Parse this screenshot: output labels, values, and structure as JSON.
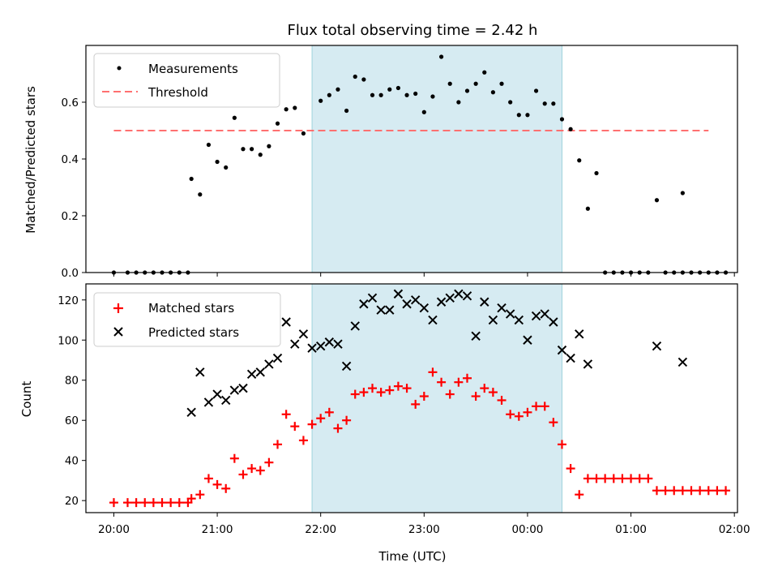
{
  "title": "Flux total observing time = 2.42 h",
  "colors": {
    "measurement": "#000000",
    "threshold": "#ff6e6e",
    "matched": "#ff0000",
    "predicted": "#000000",
    "shade": "#add8e6"
  },
  "chart_data": [
    {
      "type": "scatter",
      "title": "Flux total observing time = 2.42 h",
      "xlabel": "",
      "ylabel": "Matched/Predicted stars",
      "xlim_hours": [
        19.73,
        26.03
      ],
      "ylim": [
        0,
        0.8
      ],
      "yticks": [
        0.0,
        0.2,
        0.4,
        0.6
      ],
      "ytick_labels": [
        "0.0",
        "0.2",
        "0.4",
        "0.6"
      ],
      "legend_position": "upper-left",
      "shaded_interval": [
        "21:55",
        "24:20"
      ],
      "series": [
        {
          "name": "Measurements",
          "marker": "dot",
          "points": [
            [
              "20:00",
              0
            ],
            [
              "20:08",
              0
            ],
            [
              "20:13",
              0
            ],
            [
              "20:18",
              0
            ],
            [
              "20:23",
              0
            ],
            [
              "20:28",
              0
            ],
            [
              "20:33",
              0
            ],
            [
              "20:38",
              0
            ],
            [
              "20:43",
              0
            ],
            [
              "20:45",
              0.33
            ],
            [
              "20:50",
              0.275
            ],
            [
              "20:55",
              0.45
            ],
            [
              "21:00",
              0.39
            ],
            [
              "21:05",
              0.37
            ],
            [
              "21:10",
              0.545
            ],
            [
              "21:15",
              0.435
            ],
            [
              "21:20",
              0.435
            ],
            [
              "21:25",
              0.415
            ],
            [
              "21:30",
              0.445
            ],
            [
              "21:35",
              0.525
            ],
            [
              "21:40",
              0.575
            ],
            [
              "21:45",
              0.58
            ],
            [
              "21:50",
              0.49
            ],
            [
              "22:00",
              0.605
            ],
            [
              "22:05",
              0.625
            ],
            [
              "22:10",
              0.645
            ],
            [
              "22:15",
              0.57
            ],
            [
              "22:20",
              0.69
            ],
            [
              "22:25",
              0.68
            ],
            [
              "22:30",
              0.625
            ],
            [
              "22:35",
              0.625
            ],
            [
              "22:40",
              0.645
            ],
            [
              "22:45",
              0.65
            ],
            [
              "22:50",
              0.625
            ],
            [
              "22:55",
              0.63
            ],
            [
              "23:00",
              0.565
            ],
            [
              "23:05",
              0.62
            ],
            [
              "23:10",
              0.76
            ],
            [
              "23:15",
              0.665
            ],
            [
              "23:20",
              0.6
            ],
            [
              "23:25",
              0.64
            ],
            [
              "23:30",
              0.665
            ],
            [
              "23:35",
              0.705
            ],
            [
              "23:40",
              0.635
            ],
            [
              "23:45",
              0.665
            ],
            [
              "23:50",
              0.6
            ],
            [
              "23:55",
              0.555
            ],
            [
              "24:00",
              0.555
            ],
            [
              "24:05",
              0.64
            ],
            [
              "24:10",
              0.595
            ],
            [
              "24:15",
              0.595
            ],
            [
              "24:20",
              0.54
            ],
            [
              "24:25",
              0.505
            ],
            [
              "24:30",
              0.395
            ],
            [
              "24:35",
              0.225
            ],
            [
              "24:40",
              0.35
            ],
            [
              "24:45",
              0
            ],
            [
              "24:50",
              0
            ],
            [
              "24:55",
              0
            ],
            [
              "25:00",
              0
            ],
            [
              "25:05",
              0
            ],
            [
              "25:10",
              0
            ],
            [
              "25:20",
              0
            ],
            [
              "25:25",
              0
            ],
            [
              "25:30",
              0
            ],
            [
              "25:35",
              0
            ],
            [
              "25:40",
              0
            ],
            [
              "25:45",
              0
            ],
            [
              "25:50",
              0
            ],
            [
              "25:55",
              0
            ],
            [
              "25:15",
              0.255
            ],
            [
              "25:30",
              0.28
            ]
          ]
        },
        {
          "name": "Threshold",
          "style": "dashed",
          "x": [
            "20:00",
            "25:45"
          ],
          "values": [
            0.5,
            0.5
          ]
        }
      ]
    },
    {
      "type": "scatter",
      "xlabel": "Time (UTC)",
      "ylabel": "Count",
      "xlim_hours": [
        19.73,
        26.03
      ],
      "ylim": [
        14,
        128
      ],
      "yticks": [
        20,
        40,
        60,
        80,
        100,
        120
      ],
      "ytick_labels": [
        "20",
        "40",
        "60",
        "80",
        "100",
        "120"
      ],
      "xticks": [
        "20:00",
        "21:00",
        "22:00",
        "23:00",
        "00:00",
        "01:00",
        "02:00"
      ],
      "legend_position": "upper-left",
      "shaded_interval": [
        "21:55",
        "24:20"
      ],
      "series": [
        {
          "name": "Matched stars",
          "marker": "plus",
          "points": [
            [
              "20:00",
              19
            ],
            [
              "20:08",
              19
            ],
            [
              "20:13",
              19
            ],
            [
              "20:18",
              19
            ],
            [
              "20:23",
              19
            ],
            [
              "20:28",
              19
            ],
            [
              "20:33",
              19
            ],
            [
              "20:38",
              19
            ],
            [
              "20:43",
              19
            ],
            [
              "20:45",
              21
            ],
            [
              "20:50",
              23
            ],
            [
              "20:55",
              31
            ],
            [
              "21:00",
              28
            ],
            [
              "21:05",
              26
            ],
            [
              "21:10",
              41
            ],
            [
              "21:15",
              33
            ],
            [
              "21:20",
              36
            ],
            [
              "21:25",
              35
            ],
            [
              "21:30",
              39
            ],
            [
              "21:35",
              48
            ],
            [
              "21:40",
              63
            ],
            [
              "21:45",
              57
            ],
            [
              "21:50",
              50
            ],
            [
              "21:55",
              58
            ],
            [
              "22:00",
              61
            ],
            [
              "22:05",
              64
            ],
            [
              "22:10",
              56
            ],
            [
              "22:15",
              60
            ],
            [
              "22:20",
              73
            ],
            [
              "22:25",
              74
            ],
            [
              "22:30",
              76
            ],
            [
              "22:35",
              74
            ],
            [
              "22:40",
              75
            ],
            [
              "22:45",
              77
            ],
            [
              "22:50",
              76
            ],
            [
              "22:55",
              68
            ],
            [
              "23:00",
              72
            ],
            [
              "23:05",
              84
            ],
            [
              "23:10",
              79
            ],
            [
              "23:15",
              73
            ],
            [
              "23:20",
              79
            ],
            [
              "23:25",
              81
            ],
            [
              "23:30",
              72
            ],
            [
              "23:35",
              76
            ],
            [
              "23:40",
              74
            ],
            [
              "23:45",
              70
            ],
            [
              "23:50",
              63
            ],
            [
              "23:55",
              62
            ],
            [
              "24:00",
              64
            ],
            [
              "24:05",
              67
            ],
            [
              "24:10",
              67
            ],
            [
              "24:15",
              59
            ],
            [
              "24:20",
              48
            ],
            [
              "24:25",
              36
            ],
            [
              "24:30",
              23
            ],
            [
              "24:35",
              31
            ],
            [
              "24:40",
              31
            ],
            [
              "24:45",
              31
            ],
            [
              "24:50",
              31
            ],
            [
              "24:55",
              31
            ],
            [
              "25:00",
              31
            ],
            [
              "25:05",
              31
            ],
            [
              "25:10",
              31
            ],
            [
              "25:15",
              25
            ],
            [
              "25:20",
              25
            ],
            [
              "25:25",
              25
            ],
            [
              "25:30",
              25
            ],
            [
              "25:35",
              25
            ],
            [
              "25:40",
              25
            ],
            [
              "25:45",
              25
            ],
            [
              "25:50",
              25
            ],
            [
              "25:55",
              25
            ]
          ]
        },
        {
          "name": "Predicted stars",
          "marker": "x",
          "points": [
            [
              "20:45",
              64
            ],
            [
              "20:50",
              84
            ],
            [
              "20:55",
              69
            ],
            [
              "21:00",
              73
            ],
            [
              "21:05",
              70
            ],
            [
              "21:10",
              75
            ],
            [
              "21:15",
              76
            ],
            [
              "21:20",
              83
            ],
            [
              "21:25",
              84
            ],
            [
              "21:30",
              88
            ],
            [
              "21:35",
              91
            ],
            [
              "21:40",
              109
            ],
            [
              "21:45",
              98
            ],
            [
              "21:50",
              103
            ],
            [
              "21:55",
              96
            ],
            [
              "22:00",
              97
            ],
            [
              "22:05",
              99
            ],
            [
              "22:10",
              98
            ],
            [
              "22:15",
              87
            ],
            [
              "22:20",
              107
            ],
            [
              "22:25",
              118
            ],
            [
              "22:30",
              121
            ],
            [
              "22:35",
              115
            ],
            [
              "22:40",
              115
            ],
            [
              "22:45",
              123
            ],
            [
              "22:50",
              118
            ],
            [
              "22:55",
              120
            ],
            [
              "23:00",
              116
            ],
            [
              "23:05",
              110
            ],
            [
              "23:10",
              119
            ],
            [
              "23:15",
              121
            ],
            [
              "23:20",
              123
            ],
            [
              "23:25",
              122
            ],
            [
              "23:30",
              102
            ],
            [
              "23:35",
              119
            ],
            [
              "23:40",
              110
            ],
            [
              "23:45",
              116
            ],
            [
              "23:50",
              113
            ],
            [
              "23:55",
              110
            ],
            [
              "24:00",
              100
            ],
            [
              "24:05",
              112
            ],
            [
              "24:10",
              113
            ],
            [
              "24:15",
              109
            ],
            [
              "24:20",
              95
            ],
            [
              "24:25",
              91
            ],
            [
              "24:30",
              103
            ],
            [
              "24:35",
              88
            ],
            [
              "25:15",
              97
            ],
            [
              "25:30",
              89
            ]
          ]
        }
      ]
    }
  ]
}
